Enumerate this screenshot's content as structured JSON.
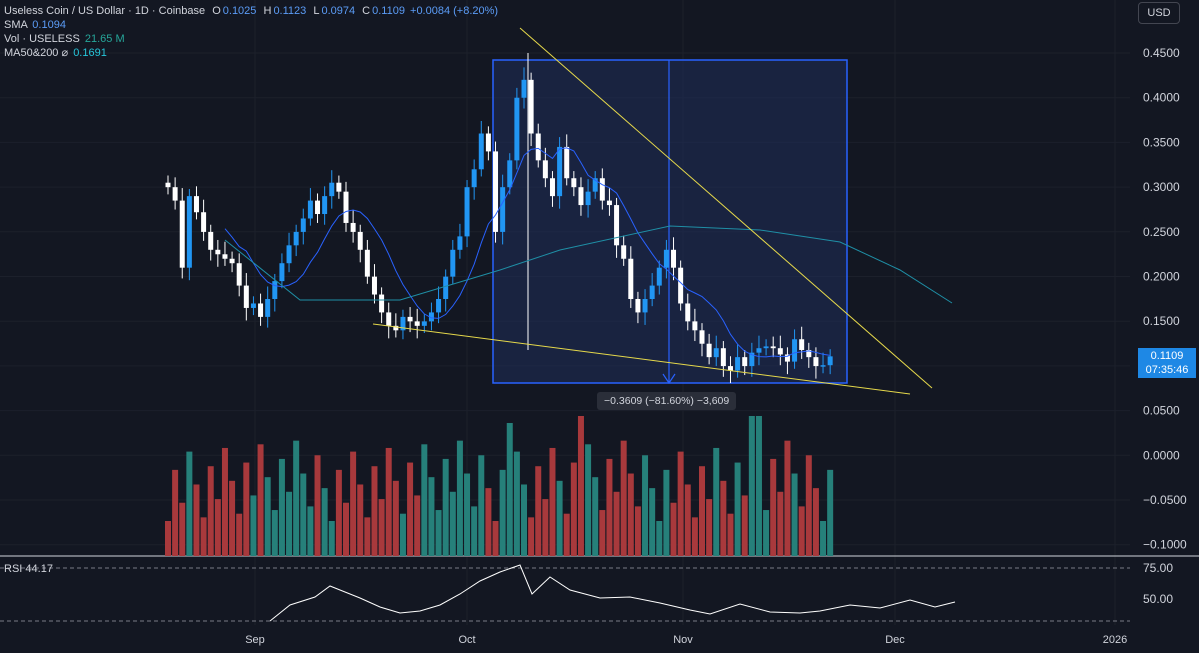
{
  "header": {
    "symbol": "Useless Coin / US Dollar · 1D · Coinbase",
    "ohlc": [
      {
        "k": "O",
        "v": "0.1025"
      },
      {
        "k": "H",
        "v": "0.1123"
      },
      {
        "k": "L",
        "v": "0.0974"
      },
      {
        "k": "C",
        "v": "0.1109"
      }
    ],
    "change": "+0.0084 (+8.20%)",
    "sma_label": "SMA",
    "sma_value": "0.1094",
    "vol_label": "Vol · USELESS",
    "vol_value": "21.65 M",
    "ma_label": "MA50&200",
    "ma_icon": "eye-off-icon",
    "ma_value": "0.1691"
  },
  "currency_button": "USD",
  "price_tag": {
    "price": "0.1109",
    "countdown": "07:35:46"
  },
  "measure_label": "−0.3609 (−81.60%) −3,609",
  "rsi": {
    "label": "RSI",
    "value": "44.17",
    "upper": "75.00",
    "mid": "50.00"
  },
  "colors": {
    "bg": "#131722",
    "up": "#2196f3",
    "down": "#ffffff",
    "vol_up": "#26807a",
    "vol_down": "#a8393c",
    "sma": "#2962ff",
    "ma200": "#1f8fa6",
    "trend": "#e6d94b",
    "box": "#2962ff"
  },
  "chart_data": {
    "type": "candlestick",
    "price_axis": [
      "0.4500",
      "0.4000",
      "0.3500",
      "0.3000",
      "0.2500",
      "0.2000",
      "0.1500",
      "0.1000",
      "0.0500",
      "0.0000",
      "−0.0500",
      "−0.1000"
    ],
    "time_axis": [
      "Sep",
      "Oct",
      "Nov",
      "Dec",
      "2026"
    ],
    "candles_close": [
      0.3,
      0.285,
      0.21,
      0.29,
      0.272,
      0.25,
      0.23,
      0.225,
      0.22,
      0.215,
      0.19,
      0.165,
      0.17,
      0.155,
      0.175,
      0.195,
      0.215,
      0.235,
      0.25,
      0.265,
      0.285,
      0.27,
      0.29,
      0.305,
      0.295,
      0.26,
      0.25,
      0.23,
      0.2,
      0.18,
      0.16,
      0.145,
      0.14,
      0.155,
      0.15,
      0.145,
      0.15,
      0.16,
      0.175,
      0.2,
      0.23,
      0.245,
      0.3,
      0.32,
      0.36,
      0.34,
      0.25,
      0.3,
      0.33,
      0.4,
      0.42,
      0.36,
      0.33,
      0.31,
      0.29,
      0.345,
      0.31,
      0.3,
      0.28,
      0.295,
      0.31,
      0.285,
      0.28,
      0.235,
      0.22,
      0.175,
      0.16,
      0.175,
      0.19,
      0.21,
      0.23,
      0.21,
      0.17,
      0.15,
      0.14,
      0.125,
      0.11,
      0.12,
      0.1,
      0.095,
      0.11,
      0.1,
      0.115,
      0.12,
      0.122,
      0.12,
      0.113,
      0.105,
      0.13,
      0.118,
      0.11,
      0.1,
      0.101,
      0.1109
    ],
    "volume_visible": true,
    "overlays": [
      "SMA 0.1094",
      "MA50&200 0.1691"
    ],
    "drawings": [
      "descending wedge trendlines",
      "price range measure box"
    ],
    "rsi_last": 44.17
  }
}
